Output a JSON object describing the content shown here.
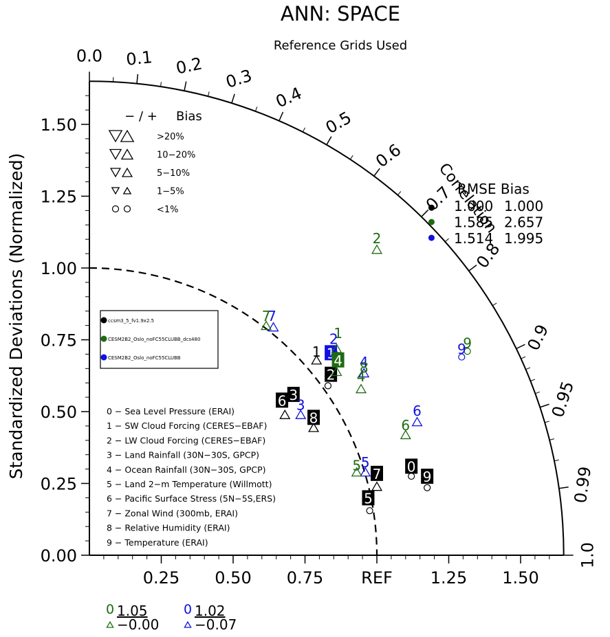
{
  "title": "ANN: SPACE",
  "subtitle": "Reference Grids Used",
  "ylabel": "Standardized Deviations (Normalized)",
  "corr_label": "Correlation",
  "colors": {
    "black": "#000000",
    "green": "#1f6b12",
    "blue": "#1010e0"
  },
  "bias_legend": {
    "header_left": "− / +",
    "header_right": "Bias",
    "rows": [
      ">20%",
      "10−20%",
      "5−10%",
      "1−5%",
      "<1%"
    ]
  },
  "rmse_table": {
    "header": "RMSE  Bias",
    "rows": [
      {
        "rmse": "1.000",
        "bias": "1.000",
        "color": "black"
      },
      {
        "rmse": "1.585",
        "bias": "2.657",
        "color": "green"
      },
      {
        "rmse": "1.514",
        "bias": "1.995",
        "color": "blue"
      }
    ]
  },
  "case_legend": [
    {
      "name": "ccsm3_5_fv1.9x2.5",
      "color": "black"
    },
    {
      "name": "CESM2B2_Oslo_noFC55CLUBB_dcs480",
      "color": "green"
    },
    {
      "name": "CESM2B2_Oslo_noFC55CLUBB",
      "color": "blue"
    }
  ],
  "variable_list": [
    "0 − Sea Level Pressure (ERAI)",
    "1 − SW Cloud Forcing (CERES−EBAF)",
    "2 − LW Cloud Forcing (CERES−EBAF)",
    "3 − Land Rainfall (30N−30S, GPCP)",
    "4 − Ocean Rainfall (30N−30S, GPCP)",
    "5 − Land 2−m Temperature (Willmott)",
    "6 − Pacific Surface Stress (5N−5S,ERS)",
    "7 − Zonal Wind (300mb, ERAI)",
    "8 − Relative Humidity (ERAI)",
    "9 − Temperature (ERAI)"
  ],
  "bottom_stats": [
    {
      "id": "0",
      "top": "1.05",
      "bottom": "−0.00",
      "color": "green"
    },
    {
      "id": "0",
      "top": "1.02",
      "bottom": "−0.07",
      "color": "blue"
    }
  ],
  "chart_data": {
    "type": "scatter",
    "subtype": "taylor-diagram",
    "max_std": 1.65,
    "reference_std": 1.0,
    "y_ticks": [
      "0.00",
      "0.25",
      "0.50",
      "0.75",
      "1.00",
      "1.25",
      "1.50"
    ],
    "x_ticks": [
      "0.25",
      "0.50",
      "0.75",
      "REF",
      "1.25",
      "1.50"
    ],
    "corr_ticks": [
      "0.0",
      "0.1",
      "0.2",
      "0.3",
      "0.4",
      "0.5",
      "0.6",
      "0.7",
      "0.8",
      "0.9",
      "0.95",
      "0.99",
      "1.0"
    ],
    "corr_values": [
      0.0,
      0.1,
      0.2,
      0.3,
      0.4,
      0.5,
      0.6,
      0.7,
      0.8,
      0.9,
      0.95,
      0.99,
      1.0
    ],
    "corr_minor_values": [
      0.05,
      0.15,
      0.25,
      0.35,
      0.45,
      0.55,
      0.65,
      0.75,
      0.85,
      0.91,
      0.92,
      0.93,
      0.94,
      0.96,
      0.97,
      0.98
    ],
    "rmse_dots": [
      {
        "x": 1.19,
        "y": 1.21,
        "color": "black"
      },
      {
        "x": 1.19,
        "y": 1.16,
        "color": "green"
      },
      {
        "x": 1.19,
        "y": 1.105,
        "color": "blue"
      }
    ],
    "points": [
      {
        "label": "0",
        "x": 1.12,
        "y": 0.31,
        "color": "black",
        "boxed": true,
        "marker": "circle",
        "mx": 1.12,
        "my": 0.275
      },
      {
        "label": "1",
        "x": 0.84,
        "y": 0.705,
        "color": "blue",
        "boxed": true,
        "marker": "",
        "mx": 0,
        "my": 0
      },
      {
        "label": "1",
        "x": 0.865,
        "y": 0.775,
        "color": "green",
        "boxed": false,
        "marker": "tri-up",
        "mx": 0.86,
        "my": 0.72
      },
      {
        "label": "2",
        "x": 0.84,
        "y": 0.63,
        "color": "black",
        "boxed": true,
        "marker": "circle",
        "mx": 0.83,
        "my": 0.59
      },
      {
        "label": "2",
        "x": 0.85,
        "y": 0.755,
        "color": "blue",
        "boxed": false,
        "marker": "tri-up",
        "mx": 0.855,
        "my": 0.705
      },
      {
        "label": "2",
        "x": 1.0,
        "y": 1.105,
        "color": "green",
        "boxed": false,
        "marker": "tri-up",
        "mx": 1.0,
        "my": 1.065
      },
      {
        "label": "3",
        "x": 0.71,
        "y": 0.56,
        "color": "black",
        "boxed": true,
        "marker": "",
        "mx": 0,
        "my": 0
      },
      {
        "label": "3",
        "x": 0.735,
        "y": 0.525,
        "color": "blue",
        "boxed": false,
        "marker": "tri-up",
        "mx": 0.735,
        "my": 0.49
      },
      {
        "label": "4",
        "x": 0.865,
        "y": 0.68,
        "color": "green",
        "boxed": true,
        "marker": "tri-up",
        "mx": 0.86,
        "my": 0.64
      },
      {
        "label": "4",
        "x": 0.955,
        "y": 0.675,
        "color": "blue",
        "boxed": false,
        "marker": "tri-up",
        "mx": 0.955,
        "my": 0.635
      },
      {
        "label": "4",
        "x": 0.945,
        "y": 0.625,
        "color": "green",
        "boxed": false,
        "marker": "tri-up",
        "mx": 0.945,
        "my": 0.58
      },
      {
        "label": "5",
        "x": 0.97,
        "y": 0.2,
        "color": "black",
        "boxed": true,
        "marker": "circle",
        "mx": 0.975,
        "my": 0.155
      },
      {
        "label": "5",
        "x": 0.96,
        "y": 0.325,
        "color": "blue",
        "boxed": false,
        "marker": "tri-up",
        "mx": 0.96,
        "my": 0.29
      },
      {
        "label": "5",
        "x": 0.93,
        "y": 0.315,
        "color": "green",
        "boxed": false,
        "marker": "tri-up",
        "mx": 0.93,
        "my": 0.29
      },
      {
        "label": "6",
        "x": 0.67,
        "y": 0.54,
        "color": "black",
        "boxed": true,
        "marker": "tri-up",
        "mx": 0.68,
        "my": 0.49
      },
      {
        "label": "6",
        "x": 1.14,
        "y": 0.505,
        "color": "blue",
        "boxed": false,
        "marker": "tri-up",
        "mx": 1.14,
        "my": 0.465
      },
      {
        "label": "6",
        "x": 1.1,
        "y": 0.455,
        "color": "green",
        "boxed": false,
        "marker": "tri-up",
        "mx": 1.1,
        "my": 0.42
      },
      {
        "label": "7",
        "x": 1.0,
        "y": 0.285,
        "color": "black",
        "boxed": true,
        "marker": "tri-up",
        "mx": 1.0,
        "my": 0.24
      },
      {
        "label": "7",
        "x": 0.635,
        "y": 0.835,
        "color": "blue",
        "boxed": false,
        "marker": "tri-up",
        "mx": 0.64,
        "my": 0.795
      },
      {
        "label": "7",
        "x": 0.615,
        "y": 0.835,
        "color": "green",
        "boxed": false,
        "marker": "tri-up",
        "mx": 0.615,
        "my": 0.8
      },
      {
        "label": "8",
        "x": 0.78,
        "y": 0.48,
        "color": "black",
        "boxed": true,
        "marker": "tri-up",
        "mx": 0.78,
        "my": 0.445
      },
      {
        "label": "8",
        "x": 0.955,
        "y": 0.655,
        "color": "green",
        "boxed": false,
        "marker": "",
        "mx": 0,
        "my": 0
      },
      {
        "label": "9",
        "x": 1.175,
        "y": 0.275,
        "color": "black",
        "boxed": true,
        "marker": "circle",
        "mx": 1.175,
        "my": 0.235
      },
      {
        "label": "9",
        "x": 1.315,
        "y": 0.74,
        "color": "green",
        "boxed": false,
        "marker": "circle",
        "mx": 1.315,
        "my": 0.71
      },
      {
        "label": "9",
        "x": 1.295,
        "y": 0.72,
        "color": "blue",
        "boxed": false,
        "marker": "circle",
        "mx": 1.295,
        "my": 0.69
      },
      {
        "label": "1",
        "x": 0.79,
        "y": 0.71,
        "color": "black",
        "boxed": false,
        "marker": "tri-up",
        "mx": 0.79,
        "my": 0.68
      }
    ]
  }
}
